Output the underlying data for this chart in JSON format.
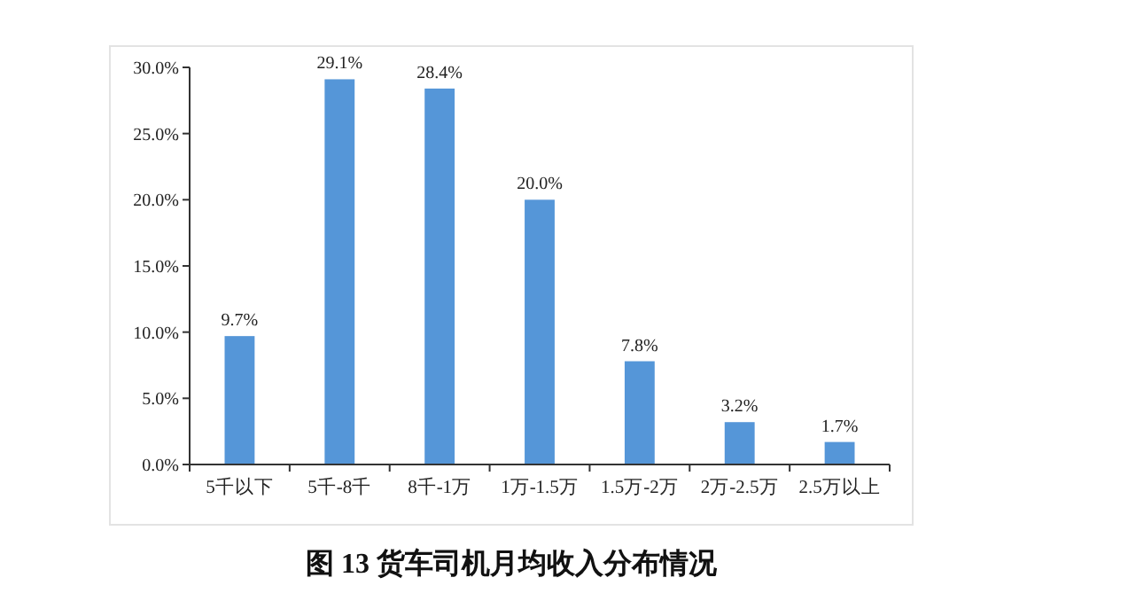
{
  "chart_data": {
    "type": "bar",
    "title": "图 13  货车司机月均收入分布情况",
    "categories": [
      "5千以下",
      "5千-8千",
      "8千-1万",
      "1万-1.5万",
      "1.5万-2万",
      "2万-2.5万",
      "2.5万以上"
    ],
    "values": [
      9.7,
      29.1,
      28.4,
      20.0,
      7.8,
      3.2,
      1.7
    ],
    "value_labels": [
      "9.7%",
      "29.1%",
      "28.4%",
      "20.0%",
      "7.8%",
      "3.2%",
      "1.7%"
    ],
    "color": "#5596d8",
    "ylim": [
      0,
      30
    ],
    "yticks": [
      {
        "value": 0,
        "label": "0.0%"
      },
      {
        "value": 5,
        "label": "5.0%"
      },
      {
        "value": 10,
        "label": "10.0%"
      },
      {
        "value": 15,
        "label": "15.0%"
      },
      {
        "value": 20,
        "label": "20.0%"
      },
      {
        "value": 25,
        "label": "25.0%"
      },
      {
        "value": 30,
        "label": "30.0%"
      }
    ],
    "grid": false
  }
}
